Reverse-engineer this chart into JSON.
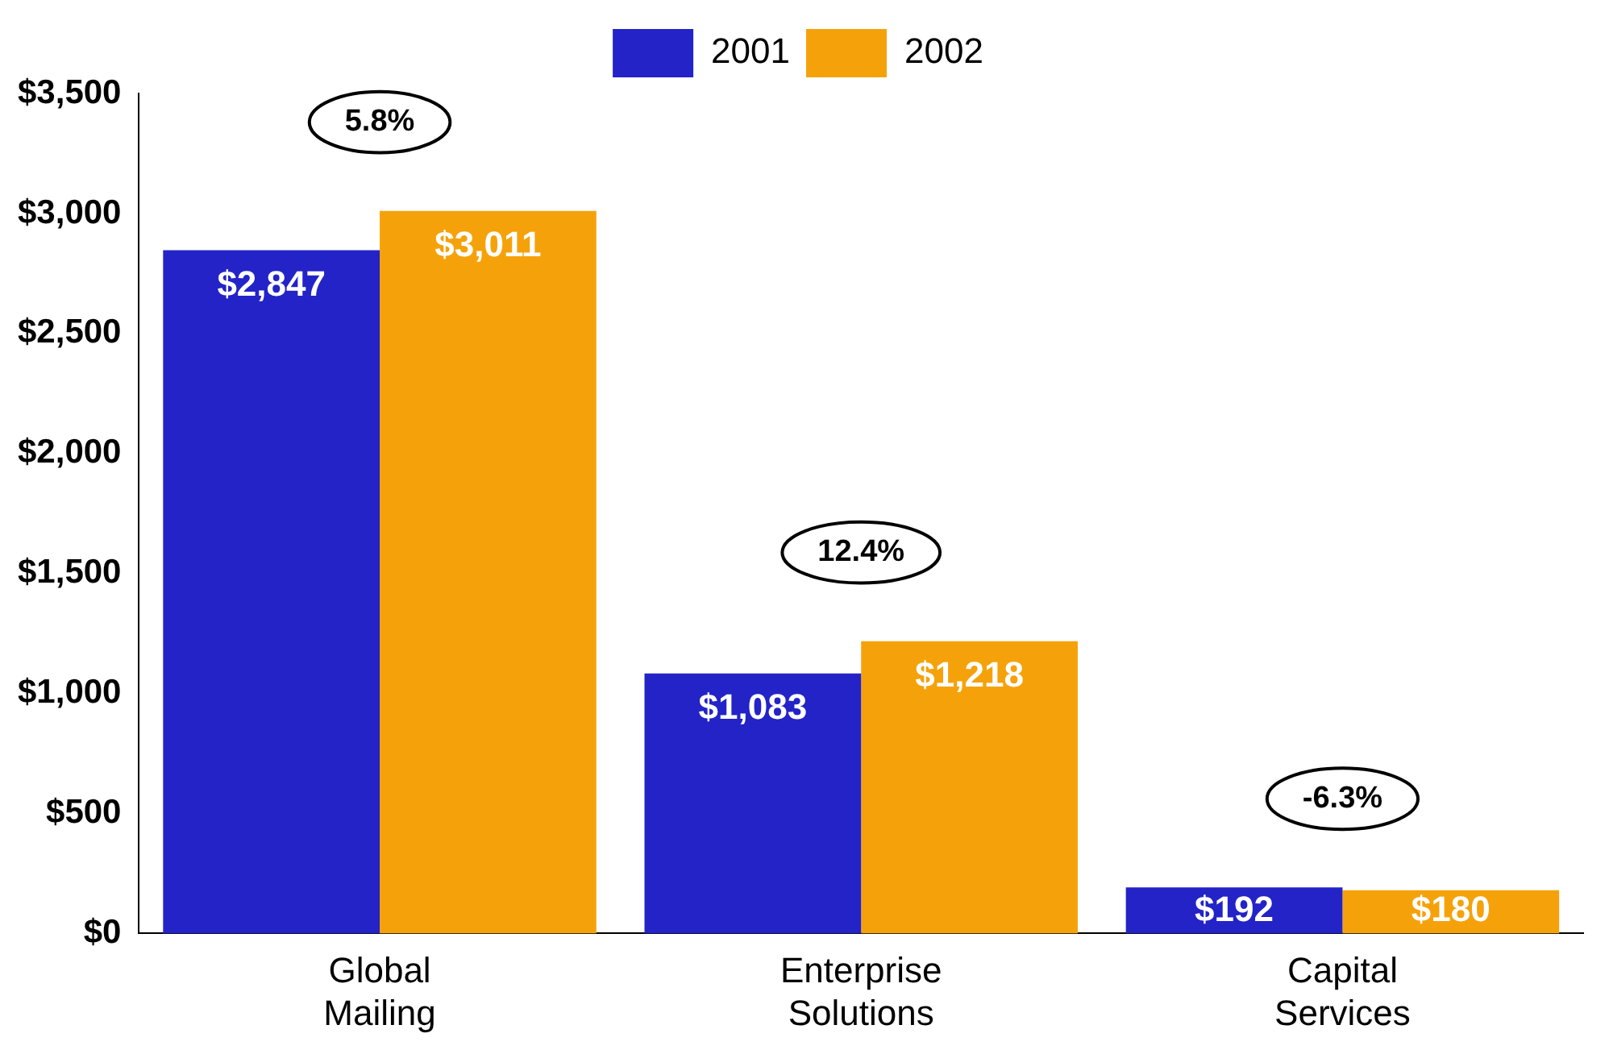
{
  "chart_data": {
    "type": "bar",
    "categories": [
      "Global Mailing",
      "Enterprise Solutions",
      "Capital Services"
    ],
    "series": [
      {
        "name": "2001",
        "color": "#2323c8",
        "values": [
          2847,
          1083,
          192
        ],
        "value_labels": [
          "$2,847",
          "$1,083",
          "$192"
        ]
      },
      {
        "name": "2002",
        "color": "#f5a20a",
        "values": [
          3011,
          1218,
          180
        ],
        "value_labels": [
          "$3,011",
          "$1,218",
          "$180"
        ]
      }
    ],
    "ylim": [
      0,
      3500
    ],
    "yticks": [
      {
        "value": 0,
        "label": "$0"
      },
      {
        "value": 500,
        "label": "$500"
      },
      {
        "value": 1000,
        "label": "$1,000"
      },
      {
        "value": 1500,
        "label": "$1,500"
      },
      {
        "value": 2000,
        "label": "$2,000"
      },
      {
        "value": 2500,
        "label": "$2,500"
      },
      {
        "value": 3000,
        "label": "$3,000"
      },
      {
        "value": 3500,
        "label": "$3,500"
      }
    ],
    "annotations": [
      "5.8%",
      "12.4%",
      "-6.3%"
    ],
    "grid": false,
    "legend": "top"
  }
}
